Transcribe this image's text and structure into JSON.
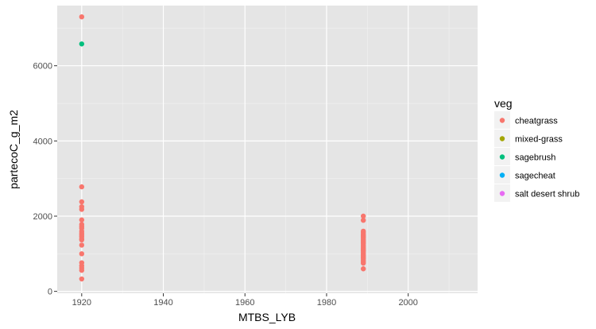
{
  "chart_data": {
    "type": "scatter",
    "title": "",
    "xlabel": "MTBS_LYB",
    "ylabel": "partecoC_g_m2",
    "xlim": [
      1914,
      2017
    ],
    "ylim": [
      -50,
      7600
    ],
    "x_ticks": [
      1920,
      1940,
      1960,
      1980,
      2000
    ],
    "y_ticks": [
      0,
      2000,
      4000,
      6000
    ],
    "x_tick_labels": [
      "1920",
      "1940",
      "1960",
      "1980",
      "2000"
    ],
    "y_tick_labels": [
      "0",
      "2000",
      "4000",
      "6000"
    ],
    "grid": true,
    "legend": {
      "title": "veg",
      "position": "right",
      "entries": [
        {
          "label": "cheatgrass",
          "color": "#F8766D"
        },
        {
          "label": "mixed-grass",
          "color": "#A3A500"
        },
        {
          "label": "sagebrush",
          "color": "#00BF7D"
        },
        {
          "label": "sagecheat",
          "color": "#00B0F6"
        },
        {
          "label": "salt desert shrub",
          "color": "#E76BF3"
        }
      ]
    },
    "series": [
      {
        "name": "cheatgrass",
        "color": "#F8766D",
        "points": [
          [
            1920,
            7300
          ],
          [
            1920,
            2780
          ],
          [
            1920,
            2380
          ],
          [
            1920,
            2250
          ],
          [
            1920,
            2180
          ],
          [
            1920,
            1900
          ],
          [
            1920,
            1780
          ],
          [
            1920,
            1730
          ],
          [
            1920,
            1680
          ],
          [
            1920,
            1600
          ],
          [
            1920,
            1550
          ],
          [
            1920,
            1500
          ],
          [
            1920,
            1450
          ],
          [
            1920,
            1400
          ],
          [
            1920,
            1370
          ],
          [
            1920,
            1230
          ],
          [
            1920,
            1000
          ],
          [
            1920,
            760
          ],
          [
            1920,
            680
          ],
          [
            1920,
            620
          ],
          [
            1920,
            560
          ],
          [
            1920,
            330
          ],
          [
            1989,
            2000
          ],
          [
            1989,
            1890
          ],
          [
            1989,
            1600
          ],
          [
            1989,
            1560
          ],
          [
            1989,
            1510
          ],
          [
            1989,
            1470
          ],
          [
            1989,
            1430
          ],
          [
            1989,
            1390
          ],
          [
            1989,
            1350
          ],
          [
            1989,
            1310
          ],
          [
            1989,
            1270
          ],
          [
            1989,
            1230
          ],
          [
            1989,
            1190
          ],
          [
            1989,
            1150
          ],
          [
            1989,
            1110
          ],
          [
            1989,
            1070
          ],
          [
            1989,
            1030
          ],
          [
            1989,
            990
          ],
          [
            1989,
            950
          ],
          [
            1989,
            910
          ],
          [
            1989,
            870
          ],
          [
            1989,
            830
          ],
          [
            1989,
            790
          ],
          [
            1989,
            750
          ],
          [
            1989,
            600
          ]
        ]
      },
      {
        "name": "sagebrush",
        "color": "#00BF7D",
        "points": [
          [
            1920,
            6580
          ]
        ]
      }
    ]
  }
}
